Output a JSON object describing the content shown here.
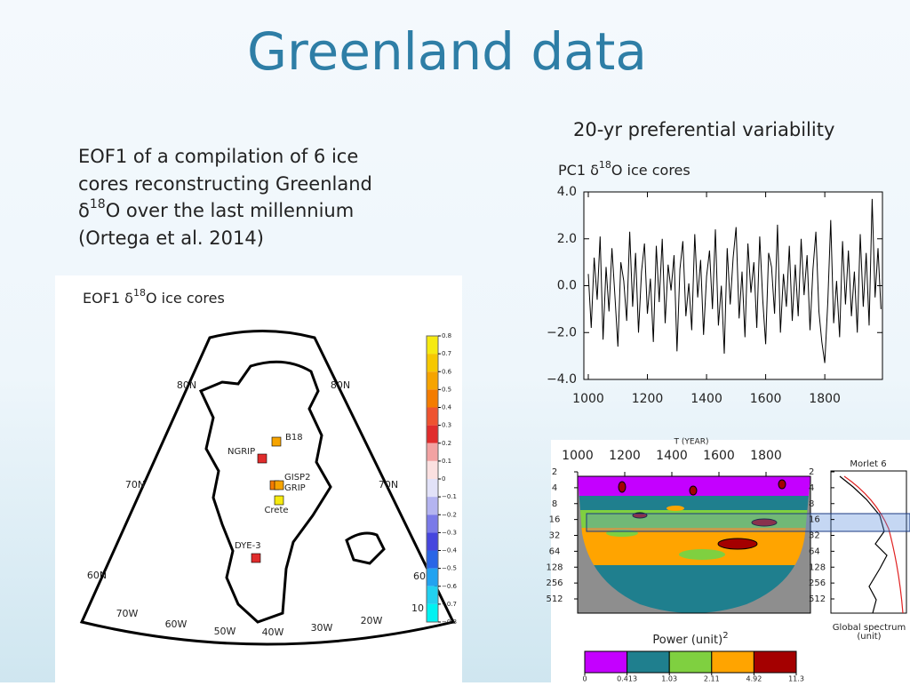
{
  "title": "Greenland data",
  "right_heading": "20-yr preferential variability",
  "description": {
    "line1": "EOF1 of a compilation of 6 ice",
    "line2": "cores reconstructing Greenland",
    "line3": {
      "pre": "δ",
      "sup": "18",
      "post": "O over the last millennium"
    },
    "line4": "(Ortega et al. 2014)"
  },
  "map": {
    "label": {
      "pre": "EOF1 δ",
      "sup": "18",
      "post": "O ice cores"
    },
    "stations": [
      {
        "name": "B18",
        "value": 0.55
      },
      {
        "name": "NGRIP",
        "value": 0.25
      },
      {
        "name": "GISP2",
        "value": 0.45
      },
      {
        "name": "GRIP",
        "value": 0.5
      },
      {
        "name": "Crete",
        "value": 0.75
      },
      {
        "name": "DYE-3",
        "value": 0.25
      }
    ],
    "grid_labels": [
      "80N",
      "80N",
      "70N",
      "70N",
      "60N",
      "60",
      "70W",
      "60W",
      "50W",
      "40W",
      "30W",
      "20W",
      "10"
    ],
    "colorbar": {
      "ticks": [
        0.8,
        0.7,
        0.6,
        0.5,
        0.4,
        0.3,
        0.2,
        0.1,
        0,
        {
          "value": -0.1,
          "label": "−0.1"
        },
        {
          "value": -0.2,
          "label": "−0.2"
        },
        {
          "value": -0.3,
          "label": "−0.3"
        },
        {
          "value": -0.4,
          "label": "−0.4"
        },
        {
          "value": -0.5,
          "label": "−0.5"
        },
        {
          "value": -0.6,
          "label": "−0.6"
        },
        {
          "value": -0.7,
          "label": "−0.7"
        },
        {
          "value": -0.8,
          "label": "−0.8"
        }
      ],
      "colors": [
        "#f6ea10",
        "#f6c800",
        "#f6a400",
        "#f47c00",
        "#ee5330",
        "#e02c2c",
        "#f2a2a2",
        "#fbe0e0",
        "#e2e2f8",
        "#b4b4f0",
        "#7a7ae8",
        "#4646de",
        "#2a66e6",
        "#22a2f0",
        "#22d0f0",
        "#00f2f2"
      ]
    }
  },
  "pc1": {
    "type": "line",
    "label": {
      "pre": "PC1 δ",
      "sup": "18",
      "post": "O ice cores"
    },
    "color": "#000000",
    "xlim": [
      985,
      1995
    ],
    "ylim": [
      -4,
      4
    ],
    "xticks": [
      1000,
      1200,
      1400,
      1600,
      1800
    ],
    "yticks": [
      {
        "value": 4,
        "label": "4.0"
      },
      {
        "value": 2,
        "label": "2.0"
      },
      {
        "value": 0,
        "label": "0.0"
      },
      {
        "value": -2,
        "label": "−2.0"
      },
      {
        "value": -4,
        "label": "−4.0"
      }
    ],
    "x": [
      1000,
      1010,
      1020,
      1030,
      1040,
      1050,
      1060,
      1070,
      1080,
      1090,
      1100,
      1110,
      1120,
      1130,
      1140,
      1150,
      1160,
      1170,
      1180,
      1190,
      1200,
      1210,
      1220,
      1230,
      1240,
      1250,
      1260,
      1270,
      1280,
      1290,
      1300,
      1310,
      1320,
      1330,
      1340,
      1350,
      1360,
      1370,
      1380,
      1390,
      1400,
      1410,
      1420,
      1430,
      1440,
      1450,
      1460,
      1470,
      1480,
      1490,
      1500,
      1510,
      1520,
      1530,
      1540,
      1550,
      1560,
      1570,
      1580,
      1590,
      1600,
      1610,
      1620,
      1630,
      1640,
      1650,
      1660,
      1670,
      1680,
      1690,
      1700,
      1710,
      1720,
      1730,
      1740,
      1750,
      1760,
      1770,
      1780,
      1790,
      1800,
      1810,
      1820,
      1830,
      1840,
      1850,
      1860,
      1870,
      1880,
      1890,
      1900,
      1910,
      1920,
      1930,
      1940,
      1950,
      1960,
      1970,
      1980,
      1990
    ],
    "values": [
      0.5,
      -1.8,
      1.2,
      -0.6,
      2.1,
      -2.3,
      0.8,
      -1.1,
      1.6,
      -0.4,
      -2.6,
      1.0,
      0.2,
      -1.5,
      2.3,
      -0.9,
      1.4,
      -2.0,
      0.6,
      1.8,
      -1.2,
      0.3,
      -2.4,
      1.7,
      -0.7,
      2.0,
      -1.6,
      0.9,
      -0.2,
      1.3,
      -2.8,
      0.7,
      1.9,
      -1.3,
      0.1,
      -1.9,
      2.2,
      -0.5,
      1.1,
      -2.1,
      0.4,
      1.5,
      -1.0,
      2.4,
      -1.7,
      0.0,
      -2.9,
      1.6,
      -0.8,
      1.2,
      2.5,
      -1.4,
      0.6,
      -2.2,
      1.8,
      -0.3,
      1.0,
      -1.8,
      2.1,
      -0.6,
      -2.5,
      1.4,
      0.8,
      -1.2,
      2.6,
      -2.0,
      0.5,
      -0.9,
      1.7,
      -1.5,
      0.9,
      -1.3,
      2.0,
      -0.4,
      1.3,
      -1.9,
      0.7,
      2.3,
      -1.1,
      -2.4,
      -3.3,
      -0.7,
      2.8,
      -1.6,
      0.2,
      -2.2,
      1.9,
      -0.8,
      1.5,
      -1.3,
      0.6,
      -2.0,
      2.2,
      -0.9,
      1.4,
      -1.7,
      3.7,
      -0.5,
      1.6,
      -1.0
    ]
  },
  "wavelet": {
    "xlabel": "T (YEAR)",
    "xlim": [
      1000,
      2000
    ],
    "xticks": [
      1000,
      1200,
      1400,
      1600,
      1800
    ],
    "ylim": [
      2,
      512
    ],
    "log_y": true,
    "yticks": [
      2,
      4,
      8,
      16,
      32,
      64,
      128,
      256,
      512
    ],
    "spectrum_title": "Morlet 6",
    "spectrum_xlabel": "Global spectrum",
    "spectrum_unit": "(unit)",
    "colorbar_label": {
      "text": "Power (unit)",
      "sup": "2"
    },
    "colorbar": {
      "ticks": [
        0,
        0.413,
        1.03,
        2.11,
        4.92,
        11.3
      ],
      "colors": [
        "#c400ff",
        "#1f7f8e",
        "#7fd040",
        "#ffa400",
        "#a40000"
      ]
    }
  }
}
